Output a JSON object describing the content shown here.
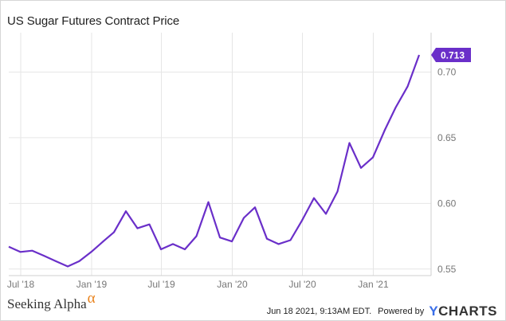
{
  "title": "US Sugar Futures Contract Price",
  "footer": {
    "source_logo": "Seeking Alpha",
    "source_logo_symbol": "α",
    "timestamp": "Jun 18 2021, 9:13AM EDT.",
    "powered_by": "Powered by",
    "brand_first": "Y",
    "brand_rest": "CHARTS"
  },
  "colors": {
    "line": "#6a2fc9",
    "badge": "#6a2fc9",
    "grid": "#e6e6e6",
    "axis_text": "#777777",
    "logo_alpha": "#e8811a",
    "brand_y": "#3a6ee8"
  },
  "chart_data": {
    "type": "line",
    "title": "US Sugar Futures Contract Price",
    "xlabel": "",
    "ylabel": "",
    "ylim": [
      0.545,
      0.73
    ],
    "x_range": [
      "2018-05-31",
      "2021-05-31"
    ],
    "y_ticks": [
      0.55,
      0.6,
      0.65,
      0.7
    ],
    "y_tick_labels": [
      "0.55",
      "0.60",
      "0.65",
      "0.70"
    ],
    "x_ticks": [
      "2018-07-01",
      "2019-01-01",
      "2019-07-01",
      "2020-01-01",
      "2020-07-01",
      "2021-01-01"
    ],
    "x_tick_labels": [
      "Jul '18",
      "Jan '19",
      "Jul '19",
      "Jan '20",
      "Jul '20",
      "Jan '21"
    ],
    "grid": true,
    "last_value_label": "0.713",
    "series": [
      {
        "points": [
          [
            "2018-05-31",
            0.567
          ],
          [
            "2018-06-30",
            0.563
          ],
          [
            "2018-07-31",
            0.564
          ],
          [
            "2018-08-31",
            0.56
          ],
          [
            "2018-09-30",
            0.556
          ],
          [
            "2018-10-31",
            0.552
          ],
          [
            "2018-11-30",
            0.556
          ],
          [
            "2018-12-31",
            0.563
          ],
          [
            "2019-01-31",
            0.571
          ],
          [
            "2019-02-28",
            0.578
          ],
          [
            "2019-03-31",
            0.594
          ],
          [
            "2019-04-30",
            0.581
          ],
          [
            "2019-05-31",
            0.584
          ],
          [
            "2019-06-30",
            0.565
          ],
          [
            "2019-07-31",
            0.569
          ],
          [
            "2019-08-31",
            0.565
          ],
          [
            "2019-09-30",
            0.575
          ],
          [
            "2019-10-31",
            0.601
          ],
          [
            "2019-11-30",
            0.574
          ],
          [
            "2019-12-31",
            0.571
          ],
          [
            "2020-01-31",
            0.589
          ],
          [
            "2020-02-29",
            0.597
          ],
          [
            "2020-03-31",
            0.573
          ],
          [
            "2020-04-30",
            0.569
          ],
          [
            "2020-05-31",
            0.572
          ],
          [
            "2020-06-30",
            0.587
          ],
          [
            "2020-07-31",
            0.604
          ],
          [
            "2020-08-31",
            0.592
          ],
          [
            "2020-09-30",
            0.609
          ],
          [
            "2020-10-31",
            0.646
          ],
          [
            "2020-11-30",
            0.627
          ],
          [
            "2020-12-31",
            0.635
          ],
          [
            "2021-01-31",
            0.656
          ],
          [
            "2021-02-28",
            0.673
          ],
          [
            "2021-03-31",
            0.689
          ],
          [
            "2021-04-30",
            0.713
          ]
        ]
      }
    ]
  }
}
